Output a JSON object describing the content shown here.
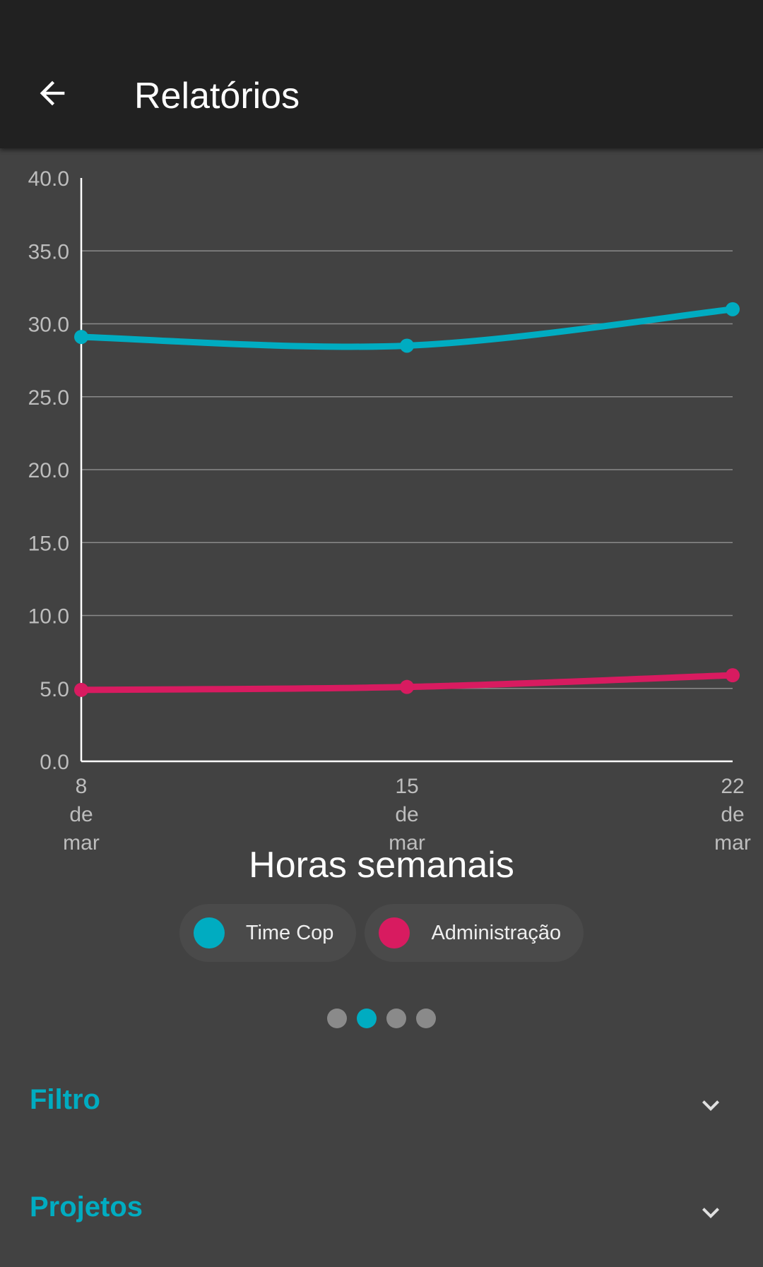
{
  "appbar": {
    "title": "Relatórios",
    "back_icon": "arrow-back-icon"
  },
  "colors": {
    "accent": "#00acc1",
    "series_time_cop": "#00acc1",
    "series_administracao": "#d81b60"
  },
  "chart_data": {
    "type": "line",
    "title": "Horas semanais",
    "x": [
      "8 de mar",
      "15 de mar",
      "22 de mar"
    ],
    "ylim": [
      0,
      40
    ],
    "yticks": [
      "0.0",
      "5.0",
      "10.0",
      "15.0",
      "20.0",
      "25.0",
      "30.0",
      "35.0",
      "40.0"
    ],
    "grid": true,
    "legend_position": "bottom",
    "series": [
      {
        "name": "Time Cop",
        "values": [
          29.1,
          28.5,
          31.0
        ],
        "color": "#00acc1"
      },
      {
        "name": "Administração",
        "values": [
          4.9,
          5.1,
          5.9
        ],
        "color": "#d81b60"
      }
    ]
  },
  "pager": {
    "count": 4,
    "active": 1
  },
  "sections": [
    {
      "title": "Filtro",
      "icon": "chevron-down-icon"
    },
    {
      "title": "Projetos",
      "icon": "chevron-down-icon"
    }
  ]
}
